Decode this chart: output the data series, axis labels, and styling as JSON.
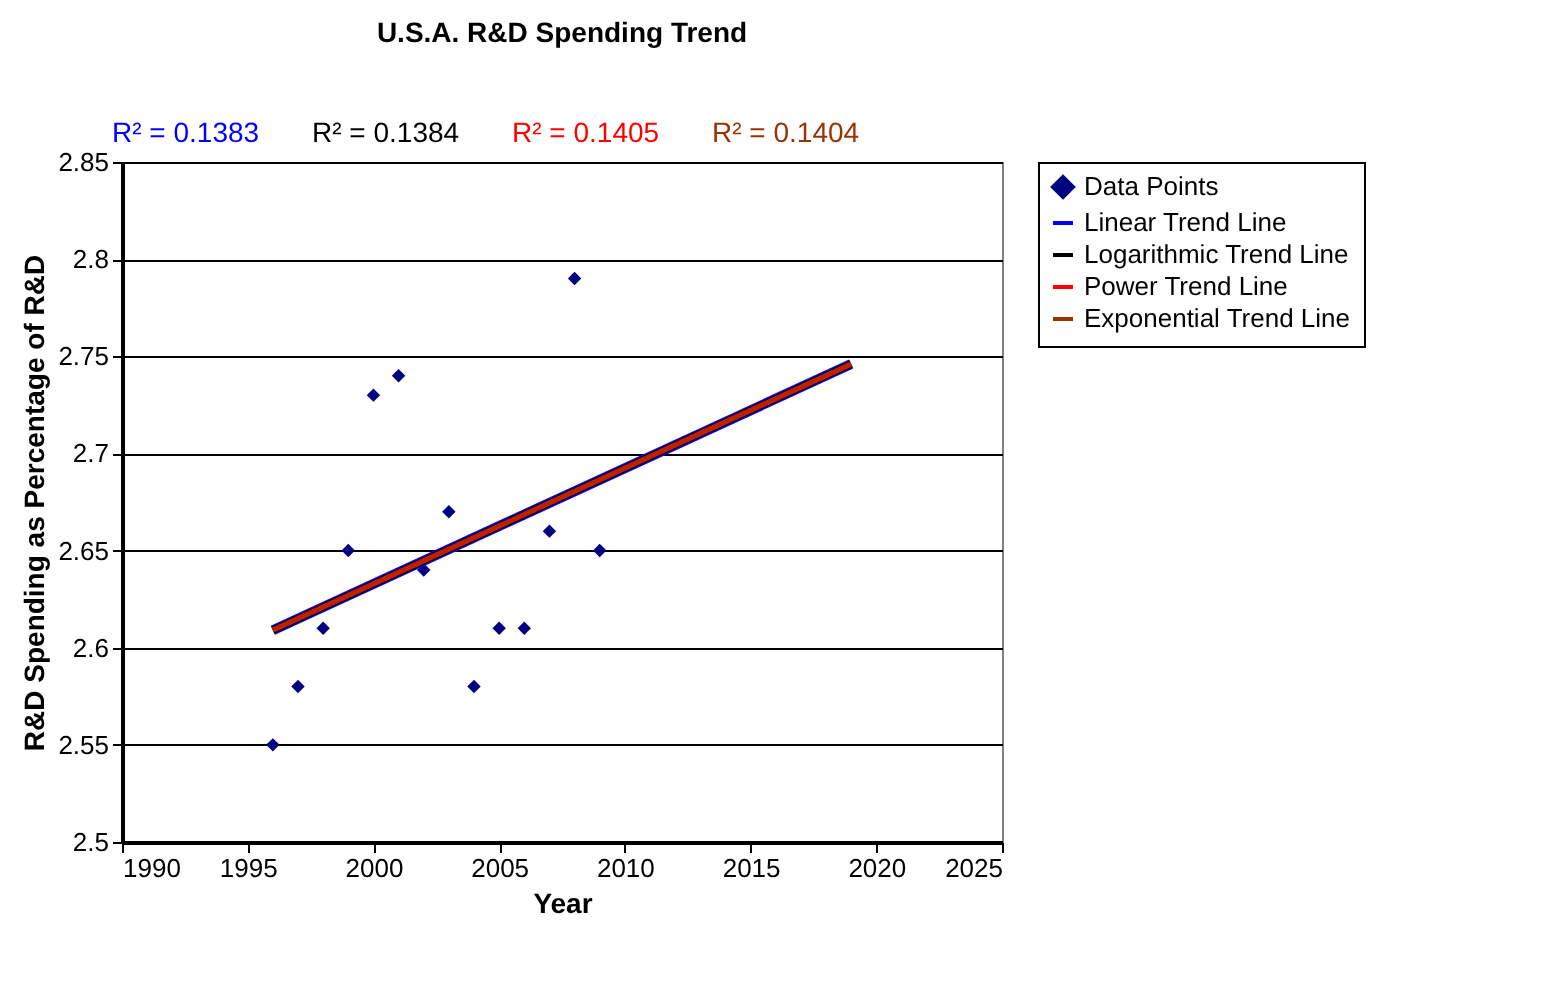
{
  "chart_data": {
    "type": "scatter",
    "title": "U.S.A. R&D Spending Trend",
    "xlabel": "Year",
    "ylabel": "R&D Spending as Percentage of R&D",
    "annotations": [
      "R² = 0.1383",
      "R² = 0.1384",
      "R² = 0.1405",
      "R² = 0.1404"
    ],
    "series": [
      {
        "name": "Data Points",
        "color": "#000080",
        "marker": "diamond",
        "x": [
          1996,
          1997,
          1998,
          1999,
          2000,
          2001,
          2002,
          2003,
          2004,
          2005,
          2006,
          2007,
          2008,
          2009
        ],
        "values": [
          2.55,
          2.58,
          2.61,
          2.65,
          2.73,
          2.74,
          2.64,
          2.67,
          2.58,
          2.61,
          2.61,
          2.66,
          2.79,
          2.65
        ]
      },
      {
        "name": "Linear Trend Line",
        "type": "line",
        "color": "#0000ff",
        "marker": "none",
        "x": [
          1996,
          2019
        ],
        "values": [
          2.609,
          2.746
        ]
      },
      {
        "name": "Logarithmic Trend Line",
        "type": "line",
        "color": "#000000",
        "marker": "none",
        "x": [
          1996,
          2019
        ],
        "values": [
          2.609,
          2.746
        ]
      },
      {
        "name": "Power Trend Line",
        "type": "line",
        "color": "#ff0000",
        "marker": "none",
        "x": [
          1996,
          2019
        ],
        "values": [
          2.609,
          2.746
        ]
      },
      {
        "name": "Exponential Trend Line",
        "type": "line",
        "color": "#993300",
        "marker": "none",
        "x": [
          1996,
          2019
        ],
        "values": [
          2.609,
          2.746
        ]
      }
    ],
    "xlim": [
      1990,
      2025
    ],
    "xticks": [
      1990,
      1995,
      2000,
      2005,
      2010,
      2015,
      2020,
      2025
    ],
    "ylim": [
      2.5,
      2.85
    ],
    "yticks": [
      2.5,
      2.55,
      2.6,
      2.65,
      2.7,
      2.75,
      2.8,
      2.85
    ],
    "grid": "y",
    "legend": "right"
  }
}
